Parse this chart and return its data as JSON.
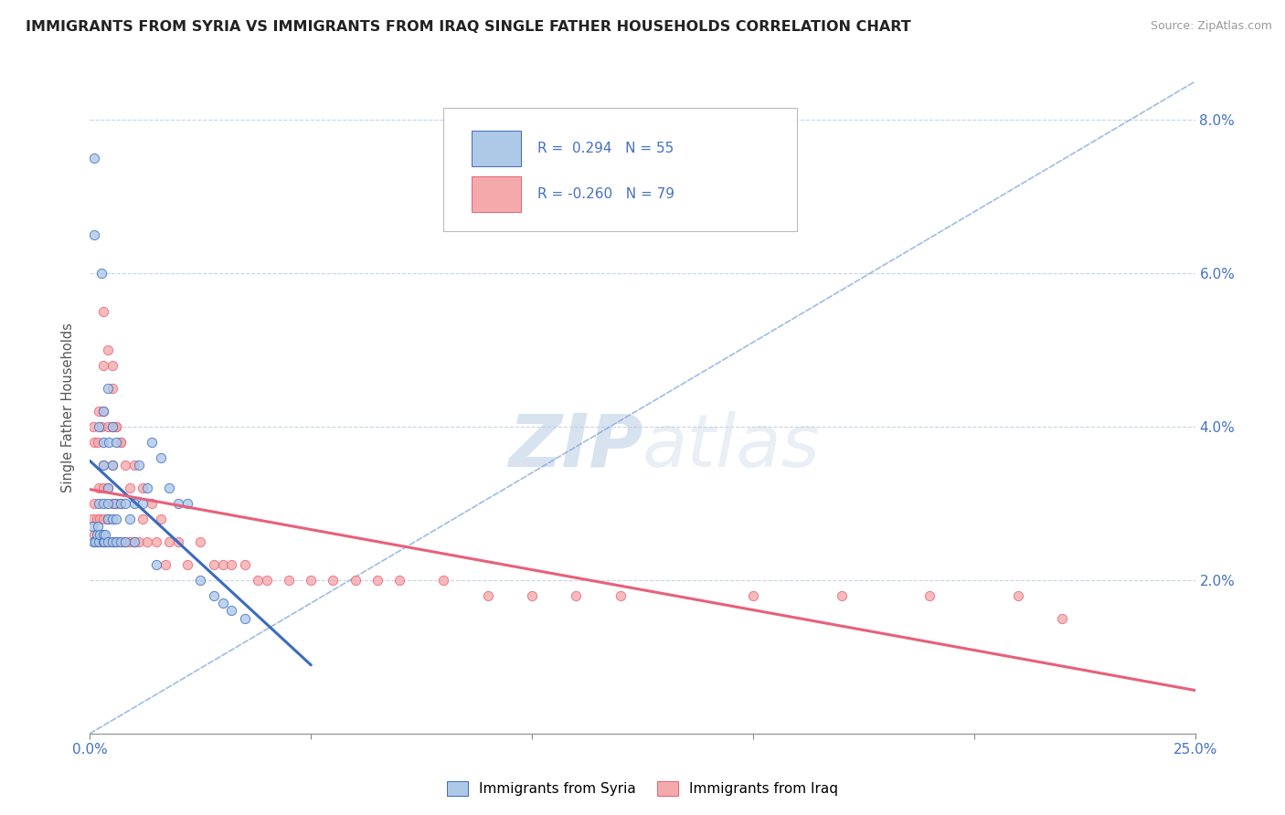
{
  "title": "IMMIGRANTS FROM SYRIA VS IMMIGRANTS FROM IRAQ SINGLE FATHER HOUSEHOLDS CORRELATION CHART",
  "source": "Source: ZipAtlas.com",
  "ylabel": "Single Father Households",
  "xlim": [
    0.0,
    0.25
  ],
  "ylim": [
    0.0,
    0.085
  ],
  "xticks": [
    0.0,
    0.05,
    0.1,
    0.15,
    0.2,
    0.25
  ],
  "yticks": [
    0.0,
    0.02,
    0.04,
    0.06,
    0.08
  ],
  "ytick_labels": [
    "",
    "2.0%",
    "4.0%",
    "6.0%",
    "8.0%"
  ],
  "xtick_labels": [
    "0.0%",
    "",
    "",
    "",
    "",
    "25.0%"
  ],
  "syria_color": "#aec8e8",
  "iraq_color": "#f4aaaa",
  "syria_line_color": "#3a6bbf",
  "iraq_line_color": "#e8607a",
  "diag_line_color": "#88aadd",
  "r_syria": 0.294,
  "n_syria": 55,
  "r_iraq": -0.26,
  "n_iraq": 79,
  "legend_r_color": "#4472c4",
  "watermark_zip": "ZIP",
  "watermark_atlas": "atlas",
  "syria_scatter_x": [
    0.0005,
    0.0008,
    0.001,
    0.001,
    0.0012,
    0.0015,
    0.0018,
    0.002,
    0.002,
    0.0022,
    0.0025,
    0.003,
    0.003,
    0.003,
    0.003,
    0.0032,
    0.0035,
    0.004,
    0.004,
    0.004,
    0.0042,
    0.005,
    0.005,
    0.005,
    0.005,
    0.0055,
    0.006,
    0.006,
    0.006,
    0.007,
    0.007,
    0.008,
    0.008,
    0.009,
    0.01,
    0.01,
    0.011,
    0.012,
    0.013,
    0.014,
    0.015,
    0.016,
    0.018,
    0.02,
    0.022,
    0.025,
    0.028,
    0.03,
    0.032,
    0.035,
    0.002,
    0.003,
    0.004,
    0.003,
    0.004
  ],
  "syria_scatter_y": [
    0.027,
    0.025,
    0.075,
    0.065,
    0.025,
    0.026,
    0.027,
    0.025,
    0.03,
    0.026,
    0.06,
    0.025,
    0.026,
    0.03,
    0.038,
    0.025,
    0.026,
    0.025,
    0.028,
    0.032,
    0.038,
    0.025,
    0.028,
    0.035,
    0.04,
    0.03,
    0.025,
    0.028,
    0.038,
    0.025,
    0.03,
    0.025,
    0.03,
    0.028,
    0.025,
    0.03,
    0.035,
    0.03,
    0.032,
    0.038,
    0.022,
    0.036,
    0.032,
    0.03,
    0.03,
    0.02,
    0.018,
    0.017,
    0.016,
    0.015,
    0.04,
    0.035,
    0.03,
    0.042,
    0.045
  ],
  "iraq_scatter_x": [
    0.0005,
    0.0008,
    0.001,
    0.001,
    0.001,
    0.0012,
    0.0015,
    0.0018,
    0.002,
    0.002,
    0.002,
    0.0022,
    0.0025,
    0.003,
    0.003,
    0.003,
    0.003,
    0.003,
    0.003,
    0.004,
    0.004,
    0.004,
    0.004,
    0.005,
    0.005,
    0.005,
    0.005,
    0.005,
    0.006,
    0.006,
    0.006,
    0.007,
    0.007,
    0.007,
    0.008,
    0.008,
    0.009,
    0.009,
    0.01,
    0.01,
    0.011,
    0.012,
    0.012,
    0.013,
    0.014,
    0.015,
    0.016,
    0.017,
    0.018,
    0.02,
    0.022,
    0.025,
    0.028,
    0.03,
    0.032,
    0.035,
    0.038,
    0.04,
    0.045,
    0.05,
    0.055,
    0.06,
    0.065,
    0.07,
    0.08,
    0.09,
    0.1,
    0.11,
    0.12,
    0.15,
    0.17,
    0.19,
    0.21,
    0.22,
    0.003,
    0.004,
    0.005,
    0.006,
    0.007
  ],
  "iraq_scatter_y": [
    0.028,
    0.04,
    0.026,
    0.03,
    0.038,
    0.025,
    0.028,
    0.038,
    0.025,
    0.032,
    0.042,
    0.028,
    0.04,
    0.025,
    0.028,
    0.032,
    0.035,
    0.042,
    0.048,
    0.025,
    0.028,
    0.032,
    0.04,
    0.025,
    0.03,
    0.035,
    0.04,
    0.048,
    0.025,
    0.03,
    0.04,
    0.025,
    0.03,
    0.038,
    0.025,
    0.035,
    0.025,
    0.032,
    0.025,
    0.035,
    0.025,
    0.028,
    0.032,
    0.025,
    0.03,
    0.025,
    0.028,
    0.022,
    0.025,
    0.025,
    0.022,
    0.025,
    0.022,
    0.022,
    0.022,
    0.022,
    0.02,
    0.02,
    0.02,
    0.02,
    0.02,
    0.02,
    0.02,
    0.02,
    0.02,
    0.018,
    0.018,
    0.018,
    0.018,
    0.018,
    0.018,
    0.018,
    0.018,
    0.015,
    0.055,
    0.05,
    0.045,
    0.04,
    0.038
  ]
}
